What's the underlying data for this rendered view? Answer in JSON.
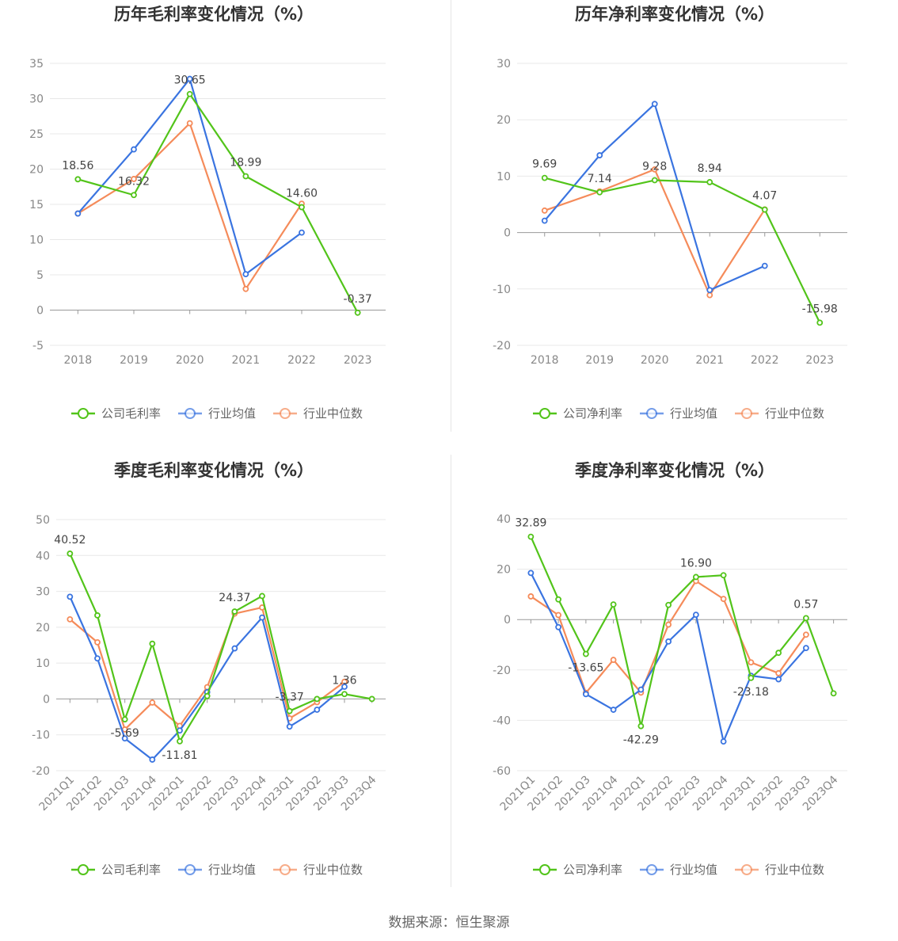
{
  "source": "数据来源：恒生聚源",
  "colors": {
    "company": "#52c41a",
    "avg": "#3a74e0",
    "median": "#f58b5a",
    "grid": "#e8e8e8",
    "axis": "#999999"
  },
  "chart_data": [
    {
      "type": "line",
      "title": "历年毛利率变化情况（%）",
      "categories": [
        "2018",
        "2019",
        "2020",
        "2021",
        "2022",
        "2023"
      ],
      "ylim": [
        -5,
        35
      ],
      "yticks": [
        -5,
        0,
        5,
        10,
        15,
        20,
        25,
        30,
        35
      ],
      "series": [
        {
          "name": "公司毛利率",
          "key": "company",
          "values": [
            18.56,
            16.32,
            30.65,
            18.99,
            14.6,
            -0.37
          ],
          "labels": [
            "18.56",
            "16.32",
            "30.65",
            "18.99",
            "14.60",
            "-0.37"
          ]
        },
        {
          "name": "行业均值",
          "key": "avg",
          "values": [
            13.7,
            22.8,
            32.8,
            5.1,
            11.0,
            null
          ]
        },
        {
          "name": "行业中位数",
          "key": "median",
          "values": [
            13.7,
            18.6,
            26.5,
            3.0,
            15.1,
            null
          ]
        }
      ]
    },
    {
      "type": "line",
      "title": "历年净利率变化情况（%）",
      "categories": [
        "2018",
        "2019",
        "2020",
        "2021",
        "2022",
        "2023"
      ],
      "ylim": [
        -20,
        30
      ],
      "yticks": [
        -20,
        -10,
        0,
        10,
        20,
        30
      ],
      "series": [
        {
          "name": "公司净利率",
          "key": "company",
          "values": [
            9.69,
            7.14,
            9.28,
            8.94,
            4.07,
            -15.98
          ],
          "labels": [
            "9.69",
            "7.14",
            "9.28",
            "8.94",
            "4.07",
            "-15.98"
          ]
        },
        {
          "name": "行业均值",
          "key": "avg",
          "values": [
            2.1,
            13.7,
            22.8,
            -10.2,
            -5.9,
            null
          ]
        },
        {
          "name": "行业中位数",
          "key": "median",
          "values": [
            3.9,
            7.3,
            11.2,
            -11.1,
            4.1,
            null
          ]
        }
      ]
    },
    {
      "type": "line",
      "title": "季度毛利率变化情况（%）",
      "categories": [
        "2021Q1",
        "2021Q2",
        "2021Q3",
        "2021Q4",
        "2022Q1",
        "2022Q2",
        "2022Q3",
        "2022Q4",
        "2023Q1",
        "2023Q2",
        "2023Q3",
        "2023Q4"
      ],
      "ylim": [
        -20,
        50
      ],
      "yticks": [
        -20,
        -10,
        0,
        10,
        20,
        30,
        40,
        50
      ],
      "series": [
        {
          "name": "公司毛利率",
          "key": "company",
          "values": [
            40.52,
            23.3,
            -5.69,
            15.4,
            -11.81,
            0.8,
            24.37,
            28.7,
            -3.37,
            0.0,
            1.36,
            0.0
          ],
          "labels": [
            "40.52",
            "",
            "-5.69",
            "",
            "-11.81",
            "",
            "24.37",
            "",
            "-3.37",
            "",
            "1.36",
            ""
          ]
        },
        {
          "name": "行业均值",
          "key": "avg",
          "values": [
            28.5,
            11.3,
            -11.0,
            -16.9,
            -8.8,
            1.9,
            14.1,
            22.7,
            -7.7,
            -3.0,
            3.4,
            null
          ]
        },
        {
          "name": "行业中位数",
          "key": "median",
          "values": [
            22.2,
            15.8,
            -8.5,
            -1.0,
            -7.5,
            3.3,
            23.8,
            25.5,
            -5.4,
            -0.9,
            4.8,
            null
          ]
        }
      ]
    },
    {
      "type": "line",
      "title": "季度净利率变化情况（%）",
      "categories": [
        "2021Q1",
        "2021Q2",
        "2021Q3",
        "2021Q4",
        "2022Q1",
        "2022Q2",
        "2022Q3",
        "2022Q4",
        "2023Q1",
        "2023Q2",
        "2023Q3",
        "2023Q4"
      ],
      "ylim": [
        -60,
        40
      ],
      "yticks": [
        -60,
        -40,
        -20,
        0,
        20,
        40
      ],
      "series": [
        {
          "name": "公司净利率",
          "key": "company",
          "values": [
            32.89,
            8.0,
            -13.65,
            6.0,
            -42.29,
            5.8,
            16.9,
            17.6,
            -23.18,
            -13.2,
            0.57,
            -29.3
          ],
          "labels": [
            "32.89",
            "",
            "-13.65",
            "",
            "-42.29",
            "",
            "16.90",
            "",
            "-23.18",
            "",
            "0.57",
            ""
          ]
        },
        {
          "name": "行业均值",
          "key": "avg",
          "values": [
            18.5,
            -3.0,
            -29.6,
            -35.8,
            -27.8,
            -8.7,
            1.9,
            -48.4,
            -22.3,
            -23.7,
            -11.3,
            null
          ]
        },
        {
          "name": "行业中位数",
          "key": "median",
          "values": [
            9.2,
            1.8,
            -29.1,
            -16.0,
            -29.0,
            -2.0,
            15.3,
            8.2,
            -17.0,
            -21.3,
            -6.0,
            null
          ]
        }
      ]
    }
  ]
}
